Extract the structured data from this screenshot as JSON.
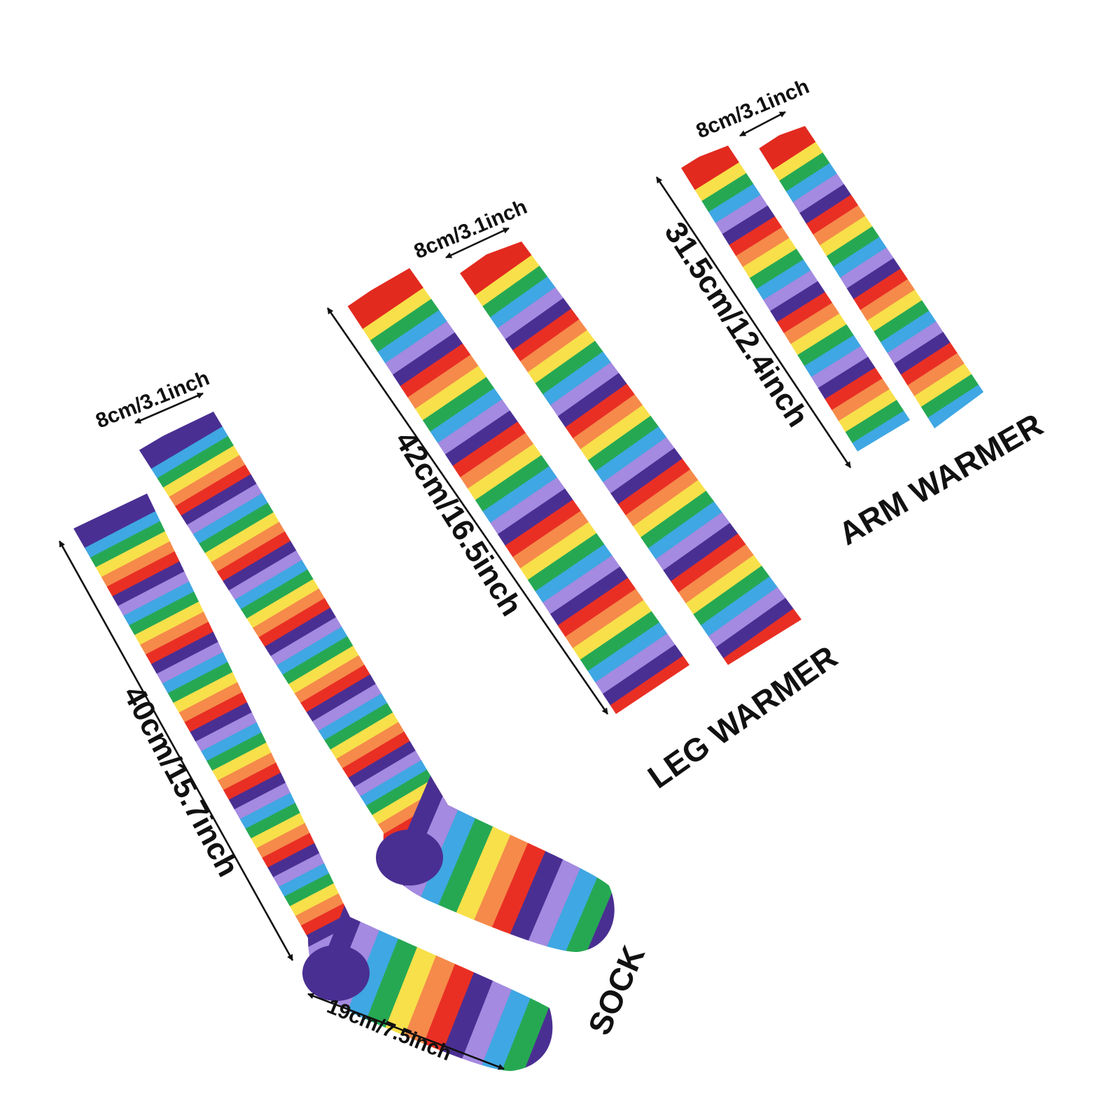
{
  "palette": {
    "stripes": [
      "#e92f24",
      "#f58a4b",
      "#f8e04a",
      "#26a853",
      "#3fa7e3",
      "#a48ae0",
      "#4a2f92"
    ],
    "cuff_red": "#e22a1f",
    "cuff_purple": "#4a2f92",
    "arrow": "#111111"
  },
  "products": {
    "sock": {
      "caption": "SOCK",
      "width_label": "8cm/3.1inch",
      "length_label": "40cm/15.7inch",
      "foot_label": "19cm/7.5inch"
    },
    "leg_warmer": {
      "caption": "LEG WARMER",
      "width_label": "8cm/3.1inch",
      "length_label": "42cm/16.5inch"
    },
    "arm_warmer": {
      "caption": "ARM WARMER",
      "width_label": "8cm/3.1inch",
      "length_label": "31.5cm/12.4inch"
    }
  }
}
